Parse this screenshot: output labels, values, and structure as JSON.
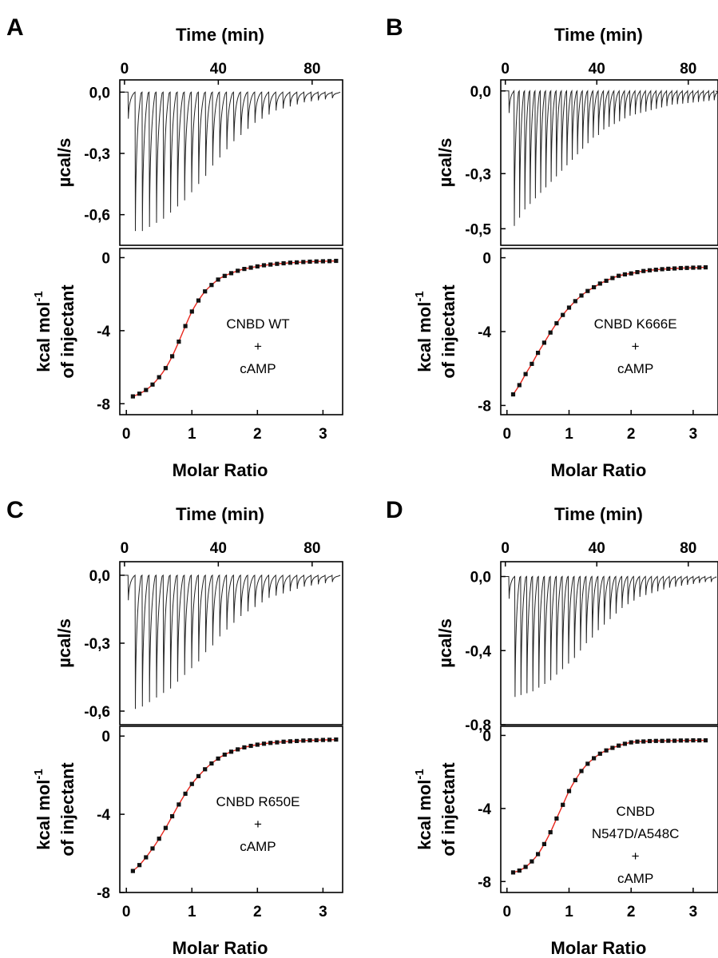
{
  "colors": {
    "raw_trace": "#222222",
    "fit_line": "#e8261c",
    "markers": "#111111",
    "axes": "#000000"
  },
  "panels": [
    {
      "letter": "A",
      "top_axis_label": "Time (min)",
      "top_x_ticks": [
        "0",
        "40",
        "80"
      ],
      "top_ylabel": "µcal/s",
      "top_y_ticks": [
        "0,0",
        "-0,3",
        "-0,6"
      ],
      "bottom_ylabel_line1": "kcal mol",
      "bottom_ylabel_sup": "-1",
      "bottom_ylabel_line2": "of injectant",
      "bottom_y_ticks": [
        "0",
        "-4",
        "-8"
      ],
      "bottom_x_ticks": [
        "0",
        "1",
        "2",
        "3"
      ],
      "xlabel": "Molar Ratio",
      "annotation": [
        "CNBD WT",
        "+",
        "cAMP"
      ]
    },
    {
      "letter": "B",
      "top_axis_label": "Time (min)",
      "top_x_ticks": [
        "0",
        "40",
        "80"
      ],
      "top_ylabel": "µcal/s",
      "top_y_ticks": [
        "0,0",
        "-0,3",
        "-0,5"
      ],
      "bottom_ylabel_line1": "kcal mol",
      "bottom_ylabel_sup": "-1",
      "bottom_ylabel_line2": "of injectant",
      "bottom_y_ticks": [
        "0",
        "-4",
        "-8"
      ],
      "bottom_x_ticks": [
        "0",
        "1",
        "2",
        "3"
      ],
      "xlabel": "Molar Ratio",
      "annotation": [
        "CNBD K666E",
        "+",
        "cAMP"
      ]
    },
    {
      "letter": "C",
      "top_axis_label": "Time (min)",
      "top_x_ticks": [
        "0",
        "40",
        "80"
      ],
      "top_ylabel": "µcal/s",
      "top_y_ticks": [
        "0,0",
        "-0,3",
        "-0,6"
      ],
      "bottom_ylabel_line1": "kcal mol",
      "bottom_ylabel_sup": "-1",
      "bottom_ylabel_line2": "of injectant",
      "bottom_y_ticks": [
        "0",
        "-4",
        "-8"
      ],
      "bottom_x_ticks": [
        "0",
        "1",
        "2",
        "3"
      ],
      "xlabel": "Molar Ratio",
      "annotation": [
        "CNBD R650E",
        "+",
        "cAMP"
      ]
    },
    {
      "letter": "D",
      "top_axis_label": "Time (min)",
      "top_x_ticks": [
        "0",
        "40",
        "80"
      ],
      "top_ylabel": "µcal/s",
      "top_y_ticks": [
        "0,0",
        "-0,4",
        "-0,8"
      ],
      "bottom_ylabel_line1": "kcal mol",
      "bottom_ylabel_sup": "-1",
      "bottom_ylabel_line2": "of injectant",
      "bottom_y_ticks": [
        "0",
        "-4",
        "-8"
      ],
      "bottom_x_ticks": [
        "0",
        "1",
        "2",
        "3"
      ],
      "xlabel": "Molar Ratio",
      "annotation": [
        "CNBD",
        "N547D/A548C",
        "+",
        "cAMP"
      ]
    }
  ],
  "chart_data": [
    {
      "panel": "A",
      "part": "raw",
      "type": "line",
      "xlabel": "Time (min)",
      "ylabel": "µcal/s",
      "xlim": [
        -2,
        93
      ],
      "ylim": [
        -0.75,
        0.06
      ],
      "baseline": 0.0,
      "injection_start": 1.5,
      "injection_interval": 3.0,
      "peak_values": [
        -0.13,
        -0.68,
        -0.68,
        -0.66,
        -0.64,
        -0.62,
        -0.59,
        -0.56,
        -0.53,
        -0.49,
        -0.45,
        -0.41,
        -0.36,
        -0.32,
        -0.28,
        -0.24,
        -0.21,
        -0.18,
        -0.15,
        -0.13,
        -0.11,
        -0.09,
        -0.08,
        -0.07,
        -0.06,
        -0.05,
        -0.045,
        -0.04,
        -0.035,
        -0.03
      ]
    },
    {
      "panel": "A",
      "part": "isotherm",
      "type": "scatter",
      "xlabel": "Molar Ratio",
      "ylabel": "kcal mol-1 of injectant",
      "xlim": [
        -0.1,
        3.3
      ],
      "ylim": [
        -8.6,
        0.5
      ],
      "x": [
        0.1,
        0.2,
        0.3,
        0.4,
        0.5,
        0.6,
        0.7,
        0.8,
        0.9,
        1.0,
        1.1,
        1.2,
        1.3,
        1.4,
        1.5,
        1.6,
        1.7,
        1.8,
        1.9,
        2.0,
        2.1,
        2.2,
        2.3,
        2.4,
        2.5,
        2.6,
        2.7,
        2.8,
        2.9,
        3.0,
        3.1,
        3.2
      ],
      "y": [
        -7.6,
        -7.45,
        -7.25,
        -6.95,
        -6.55,
        -6.05,
        -5.4,
        -4.6,
        -3.75,
        -2.95,
        -2.35,
        -1.85,
        -1.5,
        -1.2,
        -1.0,
        -0.85,
        -0.72,
        -0.62,
        -0.55,
        -0.48,
        -0.42,
        -0.38,
        -0.34,
        -0.31,
        -0.28,
        -0.26,
        -0.24,
        -0.22,
        -0.21,
        -0.2,
        -0.19,
        -0.18
      ],
      "fit_color": "#e8261c"
    },
    {
      "panel": "B",
      "part": "raw",
      "type": "line",
      "xlabel": "Time (min)",
      "ylabel": "µcal/s",
      "xlim": [
        -2,
        93
      ],
      "ylim": [
        -0.56,
        0.04
      ],
      "baseline": 0.0,
      "injection_start": 1.5,
      "injection_interval": 2.3,
      "peak_values": [
        -0.08,
        -0.49,
        -0.46,
        -0.43,
        -0.41,
        -0.39,
        -0.37,
        -0.35,
        -0.33,
        -0.31,
        -0.29,
        -0.27,
        -0.25,
        -0.23,
        -0.21,
        -0.19,
        -0.17,
        -0.16,
        -0.14,
        -0.13,
        -0.12,
        -0.11,
        -0.1,
        -0.09,
        -0.085,
        -0.08,
        -0.075,
        -0.07,
        -0.065,
        -0.06,
        -0.055,
        -0.05,
        -0.048,
        -0.046,
        -0.044,
        -0.042,
        -0.04,
        -0.038,
        -0.036,
        -0.034
      ]
    },
    {
      "panel": "B",
      "part": "isotherm",
      "type": "scatter",
      "xlabel": "Molar Ratio",
      "ylabel": "kcal mol-1 of injectant",
      "xlim": [
        -0.1,
        3.4
      ],
      "ylim": [
        -8.5,
        0.5
      ],
      "x": [
        0.1,
        0.2,
        0.3,
        0.4,
        0.5,
        0.6,
        0.7,
        0.8,
        0.9,
        1.0,
        1.1,
        1.2,
        1.3,
        1.4,
        1.5,
        1.6,
        1.7,
        1.8,
        1.9,
        2.0,
        2.1,
        2.2,
        2.3,
        2.4,
        2.5,
        2.6,
        2.7,
        2.8,
        2.9,
        3.0,
        3.1,
        3.2
      ],
      "y": [
        -7.4,
        -6.9,
        -6.3,
        -5.75,
        -5.15,
        -4.6,
        -4.05,
        -3.55,
        -3.1,
        -2.7,
        -2.35,
        -2.05,
        -1.8,
        -1.6,
        -1.4,
        -1.25,
        -1.1,
        -0.98,
        -0.9,
        -0.85,
        -0.78,
        -0.72,
        -0.68,
        -0.65,
        -0.62,
        -0.6,
        -0.58,
        -0.56,
        -0.55,
        -0.54,
        -0.53,
        -0.52
      ],
      "fit_color": "#e8261c"
    },
    {
      "panel": "C",
      "part": "raw",
      "type": "line",
      "xlabel": "Time (min)",
      "ylabel": "µcal/s",
      "xlim": [
        -2,
        93
      ],
      "ylim": [
        -0.66,
        0.06
      ],
      "baseline": 0.0,
      "injection_start": 1.5,
      "injection_interval": 3.0,
      "peak_values": [
        -0.11,
        -0.59,
        -0.58,
        -0.56,
        -0.54,
        -0.52,
        -0.5,
        -0.47,
        -0.44,
        -0.41,
        -0.38,
        -0.34,
        -0.31,
        -0.27,
        -0.24,
        -0.21,
        -0.18,
        -0.16,
        -0.14,
        -0.12,
        -0.1,
        -0.09,
        -0.08,
        -0.07,
        -0.06,
        -0.05,
        -0.045,
        -0.04,
        -0.035,
        -0.03
      ]
    },
    {
      "panel": "C",
      "part": "isotherm",
      "type": "scatter",
      "xlabel": "Molar Ratio",
      "ylabel": "kcal mol-1 of injectant",
      "xlim": [
        -0.1,
        3.3
      ],
      "ylim": [
        -8.0,
        0.5
      ],
      "x": [
        0.1,
        0.2,
        0.3,
        0.4,
        0.5,
        0.6,
        0.7,
        0.8,
        0.9,
        1.0,
        1.1,
        1.2,
        1.3,
        1.4,
        1.5,
        1.6,
        1.7,
        1.8,
        1.9,
        2.0,
        2.1,
        2.2,
        2.3,
        2.4,
        2.5,
        2.6,
        2.7,
        2.8,
        2.9,
        3.0,
        3.1,
        3.2
      ],
      "y": [
        -6.9,
        -6.6,
        -6.2,
        -5.75,
        -5.25,
        -4.7,
        -4.1,
        -3.5,
        -2.95,
        -2.45,
        -2.05,
        -1.7,
        -1.4,
        -1.15,
        -0.95,
        -0.8,
        -0.68,
        -0.58,
        -0.5,
        -0.44,
        -0.39,
        -0.35,
        -0.32,
        -0.29,
        -0.27,
        -0.25,
        -0.23,
        -0.22,
        -0.21,
        -0.2,
        -0.19,
        -0.18
      ],
      "fit_color": "#e8261c"
    },
    {
      "panel": "D",
      "part": "raw",
      "type": "line",
      "xlabel": "Time (min)",
      "ylabel": "µcal/s",
      "xlim": [
        -2,
        93
      ],
      "ylim": [
        -0.8,
        0.08
      ],
      "baseline": 0.0,
      "injection_start": 1.5,
      "injection_interval": 2.6,
      "peak_values": [
        -0.12,
        -0.65,
        -0.64,
        -0.63,
        -0.62,
        -0.6,
        -0.58,
        -0.56,
        -0.53,
        -0.5,
        -0.47,
        -0.44,
        -0.4,
        -0.36,
        -0.33,
        -0.29,
        -0.26,
        -0.23,
        -0.2,
        -0.17,
        -0.15,
        -0.13,
        -0.11,
        -0.1,
        -0.09,
        -0.08,
        -0.07,
        -0.06,
        -0.055,
        -0.05,
        -0.045,
        -0.04,
        -0.035,
        -0.03,
        -0.03
      ]
    },
    {
      "panel": "D",
      "part": "isotherm",
      "type": "scatter",
      "xlabel": "Molar Ratio",
      "ylabel": "kcal mol-1 of injectant",
      "xlim": [
        -0.1,
        3.4
      ],
      "ylim": [
        -8.6,
        0.5
      ],
      "x": [
        0.1,
        0.2,
        0.3,
        0.4,
        0.5,
        0.6,
        0.7,
        0.8,
        0.9,
        1.0,
        1.1,
        1.2,
        1.3,
        1.4,
        1.5,
        1.6,
        1.7,
        1.8,
        1.9,
        2.0,
        2.1,
        2.2,
        2.3,
        2.4,
        2.5,
        2.6,
        2.7,
        2.8,
        2.9,
        3.0,
        3.1,
        3.2
      ],
      "y": [
        -7.5,
        -7.4,
        -7.2,
        -6.9,
        -6.5,
        -5.95,
        -5.3,
        -4.55,
        -3.8,
        -3.05,
        -2.45,
        -1.95,
        -1.55,
        -1.25,
        -1.0,
        -0.82,
        -0.68,
        -0.56,
        -0.46,
        -0.38,
        -0.34,
        -0.33,
        -0.31,
        -0.3,
        -0.3,
        -0.29,
        -0.29,
        -0.28,
        -0.28,
        -0.27,
        -0.27,
        -0.27
      ],
      "fit_color": "#e8261c"
    }
  ]
}
